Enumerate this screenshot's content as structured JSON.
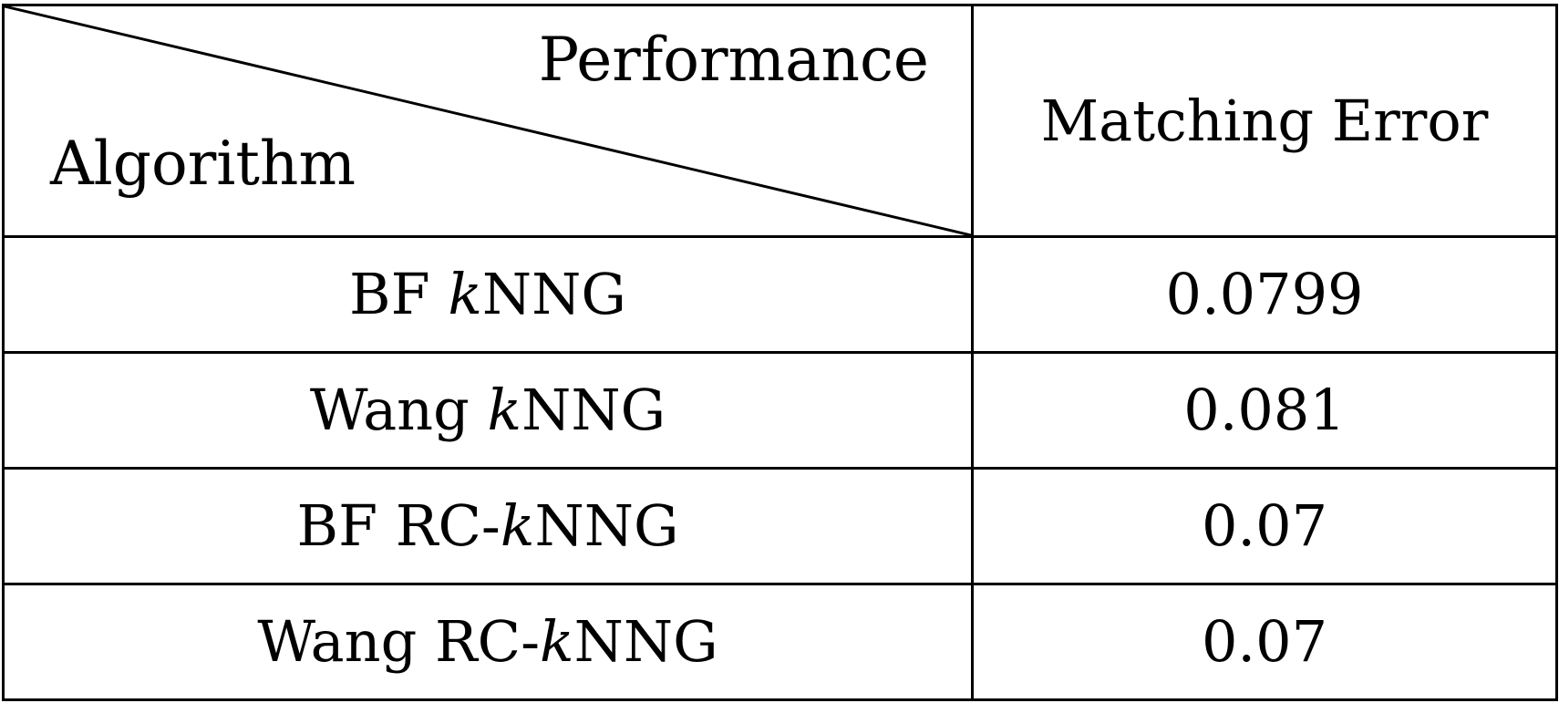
{
  "table": {
    "header": {
      "diag_top": "Performance",
      "diag_bottom": "Algorithm",
      "metric": "Matching Error"
    },
    "rows": [
      {
        "prefix": "BF ",
        "k": "k",
        "suffix": "NNG",
        "value": "0.0799"
      },
      {
        "prefix": "Wang ",
        "k": "k",
        "suffix": "NNG",
        "value": "0.081"
      },
      {
        "prefix": "BF RC-",
        "k": "k",
        "suffix": "NNG",
        "value": "0.07"
      },
      {
        "prefix": "Wang RC-",
        "k": "k",
        "suffix": "NNG",
        "value": "0.07"
      }
    ]
  }
}
